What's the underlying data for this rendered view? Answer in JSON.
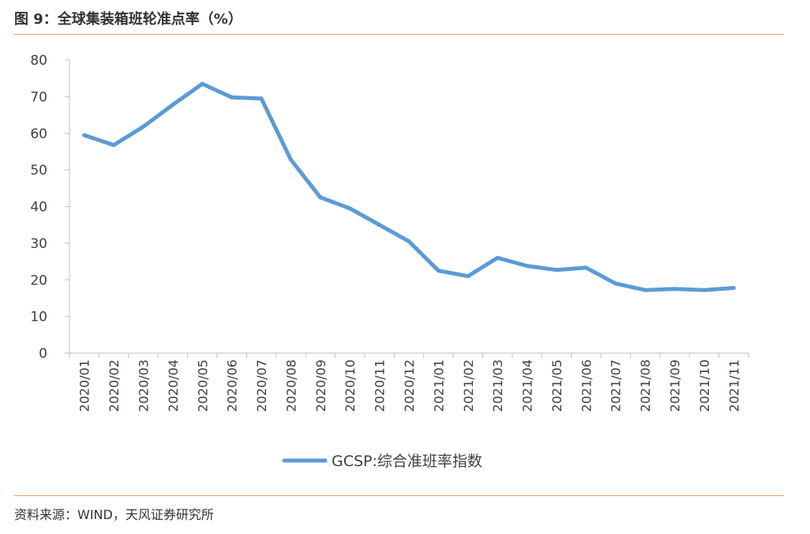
{
  "header": {
    "title": "图 9：全球集装箱班轮准点率（%）"
  },
  "footer": {
    "source": "资料来源：WIND，天风证券研究所"
  },
  "colors": {
    "line": "#5b9bd5",
    "axis": "#bfbfbf",
    "rule": "#d9a55a",
    "text": "#404040"
  },
  "chart_data": {
    "type": "line",
    "title": "",
    "xlabel": "",
    "ylabel": "",
    "ylim": [
      0,
      80
    ],
    "yticks": [
      0,
      10,
      20,
      30,
      40,
      50,
      60,
      70,
      80
    ],
    "grid": false,
    "legend_position": "bottom",
    "categories": [
      "2020/01",
      "2020/02",
      "2020/03",
      "2020/04",
      "2020/05",
      "2020/06",
      "2020/07",
      "2020/08",
      "2020/09",
      "2020/10",
      "2020/11",
      "2020/12",
      "2021/01",
      "2021/02",
      "2021/03",
      "2021/04",
      "2021/05",
      "2021/06",
      "2021/07",
      "2021/08",
      "2021/09",
      "2021/10",
      "2021/11"
    ],
    "series": [
      {
        "name": "GCSP:综合准班率指数",
        "values": [
          59.5,
          56.8,
          61.8,
          67.8,
          73.5,
          69.8,
          69.5,
          52.8,
          42.5,
          39.5,
          35.0,
          30.5,
          22.5,
          21.0,
          26.0,
          23.8,
          22.7,
          23.3,
          19.0,
          17.2,
          17.5,
          17.2,
          17.8
        ]
      }
    ]
  }
}
